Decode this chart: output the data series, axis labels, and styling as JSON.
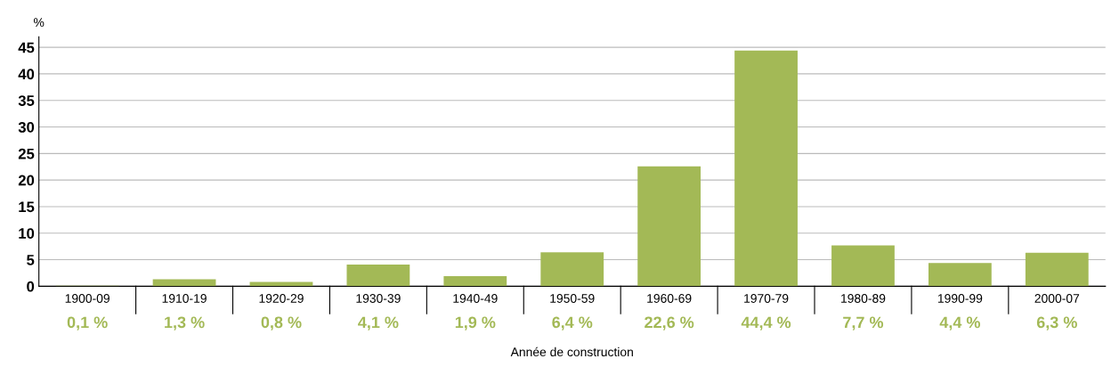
{
  "chart_data": {
    "type": "bar",
    "ylabel": "%",
    "xlabel": "Année de construction",
    "categories": [
      "1900-09",
      "1910-19",
      "1920-29",
      "1930-39",
      "1940-49",
      "1950-59",
      "1960-69",
      "1970-79",
      "1980-89",
      "1990-99",
      "2000-07"
    ],
    "values": [
      0.1,
      1.3,
      0.8,
      4.1,
      1.9,
      6.4,
      22.6,
      44.4,
      7.7,
      4.4,
      6.3
    ],
    "value_labels": [
      "0,1 %",
      "1,3 %",
      "0,8 %",
      "4,1 %",
      "1,9 %",
      "6,4 %",
      "22,6 %",
      "44,4 %",
      "7,7 %",
      "4,4 %",
      "6,3 %"
    ],
    "color": "#a3b956",
    "ylim": [
      0,
      47
    ],
    "yticks": [
      0,
      5,
      10,
      15,
      20,
      25,
      30,
      35,
      40,
      45
    ],
    "grid": "y"
  }
}
